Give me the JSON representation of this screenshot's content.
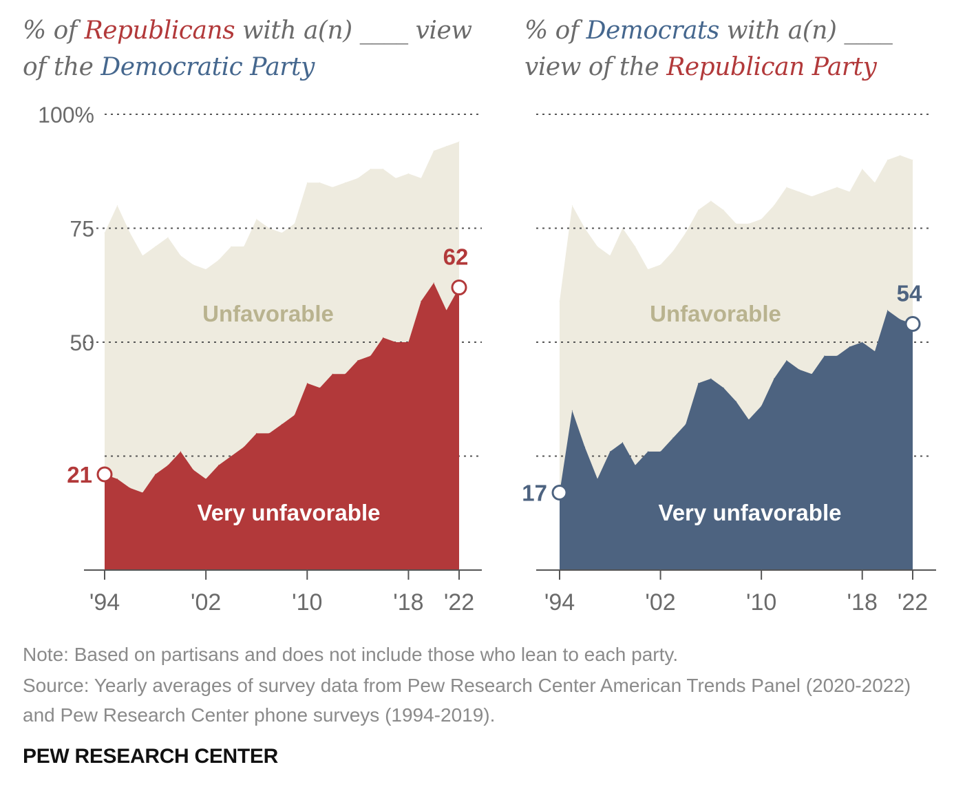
{
  "titles": {
    "left": {
      "pre": "% of ",
      "party": "Republicans",
      "mid": " with a(n) ____ view of the ",
      "other": "Democratic Party",
      "post": ""
    },
    "right": {
      "pre": "% of ",
      "party": "Democrats",
      "mid": " with a(n) ____ view of the ",
      "other": "Republican Party",
      "post": ""
    }
  },
  "colors": {
    "republican": "#b2393a",
    "democrat": "#4d6380",
    "unfavorable_area": "#eeebdf",
    "unfavorable_label": "#b9b38f",
    "axis_text": "#6b6b6b",
    "grid": "#555555"
  },
  "chart_data": [
    {
      "type": "area",
      "name": "republicans_view_of_democratic_party",
      "x": [
        1994,
        1995,
        1996,
        1997,
        1998,
        1999,
        2000,
        2001,
        2002,
        2003,
        2004,
        2005,
        2006,
        2007,
        2008,
        2009,
        2010,
        2011,
        2012,
        2013,
        2014,
        2015,
        2016,
        2017,
        2018,
        2019,
        2020,
        2021,
        2022
      ],
      "series": [
        {
          "name": "Unfavorable",
          "values": [
            74,
            80,
            74,
            69,
            71,
            73,
            69,
            67,
            66,
            68,
            71,
            71,
            77,
            75,
            74,
            76,
            85,
            85,
            84,
            85,
            86,
            88,
            88,
            86,
            87,
            86,
            92,
            93,
            94
          ]
        },
        {
          "name": "Very unfavorable",
          "values": [
            21,
            20,
            18,
            17,
            21,
            23,
            26,
            22,
            20,
            23,
            25,
            27,
            30,
            30,
            32,
            34,
            41,
            40,
            43,
            43,
            46,
            47,
            51,
            50,
            50,
            59,
            63,
            57,
            62
          ]
        }
      ],
      "callouts": [
        {
          "x": 1994,
          "value": 21,
          "label": "21"
        },
        {
          "x": 2022,
          "value": 62,
          "label": "62"
        }
      ],
      "area_labels": {
        "unfavorable": "Unfavorable",
        "very_unfavorable": "Very unfavorable"
      },
      "y_ticks": [
        {
          "value": 100,
          "label": "100%"
        },
        {
          "value": 75,
          "label": "75"
        },
        {
          "value": 50,
          "label": "50"
        },
        {
          "value": 25,
          "label": ""
        }
      ],
      "x_ticks": [
        {
          "value": 1994,
          "label": "'94"
        },
        {
          "value": 2002,
          "label": "'02"
        },
        {
          "value": 2010,
          "label": "'10"
        },
        {
          "value": 2018,
          "label": "'18"
        },
        {
          "value": 2022,
          "label": "'22"
        }
      ],
      "ylim": [
        0,
        100
      ],
      "xlim": [
        1994,
        2022
      ],
      "grid": true
    },
    {
      "type": "area",
      "name": "democrats_view_of_republican_party",
      "x": [
        1994,
        1995,
        1996,
        1997,
        1998,
        1999,
        2000,
        2001,
        2002,
        2003,
        2004,
        2005,
        2006,
        2007,
        2008,
        2009,
        2010,
        2011,
        2012,
        2013,
        2014,
        2015,
        2016,
        2017,
        2018,
        2019,
        2020,
        2021,
        2022
      ],
      "series": [
        {
          "name": "Unfavorable",
          "values": [
            59,
            80,
            75,
            71,
            69,
            75,
            71,
            66,
            67,
            70,
            74,
            79,
            81,
            79,
            76,
            76,
            77,
            80,
            84,
            83,
            82,
            83,
            84,
            83,
            88,
            85,
            90,
            91,
            90
          ]
        },
        {
          "name": "Very unfavorable",
          "values": [
            17,
            35,
            27,
            20,
            26,
            28,
            23,
            26,
            26,
            29,
            32,
            41,
            42,
            40,
            37,
            33,
            36,
            42,
            46,
            44,
            43,
            47,
            47,
            49,
            50,
            48,
            57,
            55,
            54
          ]
        }
      ],
      "callouts": [
        {
          "x": 1994,
          "value": 17,
          "label": "17"
        },
        {
          "x": 2022,
          "value": 54,
          "label": "54"
        }
      ],
      "area_labels": {
        "unfavorable": "Unfavorable",
        "very_unfavorable": "Very unfavorable"
      },
      "y_ticks": [
        {
          "value": 100,
          "label": ""
        },
        {
          "value": 75,
          "label": ""
        },
        {
          "value": 50,
          "label": ""
        },
        {
          "value": 25,
          "label": ""
        }
      ],
      "x_ticks": [
        {
          "value": 1994,
          "label": "'94"
        },
        {
          "value": 2002,
          "label": "'02"
        },
        {
          "value": 2010,
          "label": "'10"
        },
        {
          "value": 2018,
          "label": "'18"
        },
        {
          "value": 2022,
          "label": "'22"
        }
      ],
      "ylim": [
        0,
        100
      ],
      "xlim": [
        1994,
        2022
      ],
      "grid": true
    }
  ],
  "footer": {
    "note": "Note: Based on partisans and does not include those who lean to each party.",
    "source": "Source: Yearly averages of survey data from Pew Research Center American Trends Panel (2020-2022) and Pew Research Center phone surveys (1994-2019).",
    "brand": "PEW RESEARCH CENTER"
  }
}
